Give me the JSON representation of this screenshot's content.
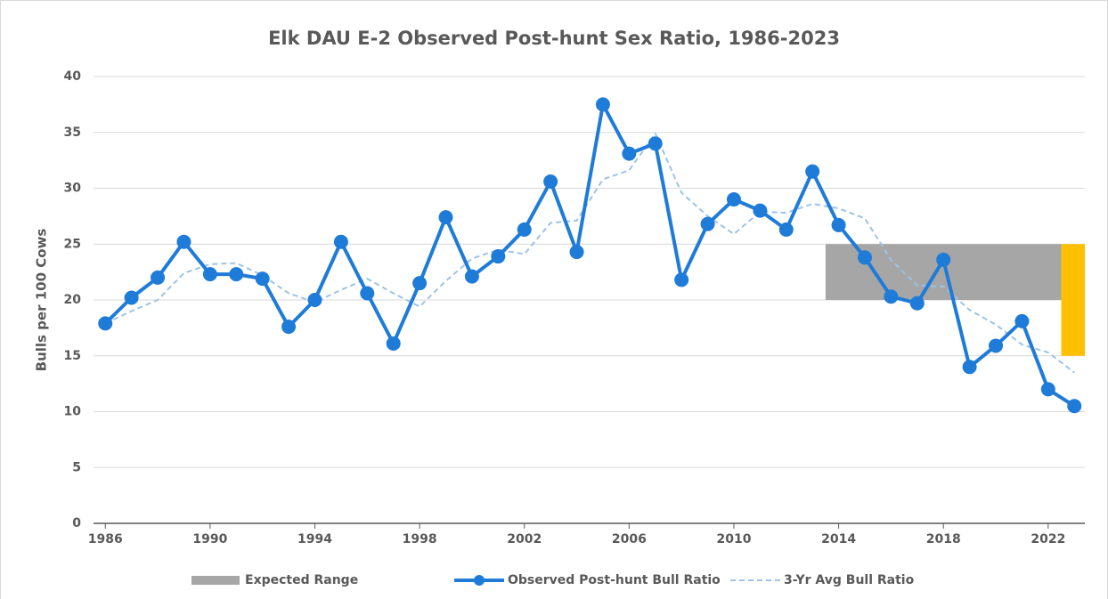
{
  "chart_data": {
    "type": "line",
    "title": "Elk DAU E-2 Observed Post-hunt Sex Ratio, 1986-2023",
    "ylabel": "Bulls per 100 Cows",
    "x": [
      1986,
      1987,
      1988,
      1989,
      1990,
      1991,
      1992,
      1993,
      1994,
      1995,
      1996,
      1997,
      1998,
      1999,
      2000,
      2001,
      2002,
      2003,
      2004,
      2005,
      2006,
      2007,
      2008,
      2009,
      2010,
      2011,
      2012,
      2013,
      2014,
      2015,
      2016,
      2017,
      2018,
      2019,
      2020,
      2021,
      2022,
      2023
    ],
    "series": [
      {
        "name": "Observed Post-hunt Bull Ratio",
        "color": "#1f7bd8",
        "style": "solid-markers",
        "values": [
          17.9,
          20.2,
          22.0,
          25.2,
          22.3,
          22.3,
          21.9,
          17.6,
          20.0,
          25.2,
          20.6,
          16.1,
          21.5,
          27.4,
          22.1,
          23.9,
          26.3,
          30.6,
          24.3,
          37.5,
          33.1,
          34.0,
          21.8,
          26.8,
          29.0,
          28.0,
          26.3,
          31.5,
          26.7,
          23.8,
          20.3,
          19.7,
          23.6,
          14.0,
          15.9,
          18.1,
          12.0,
          10.5
        ]
      },
      {
        "name": "3-Yr Avg Bull Ratio",
        "color": "#9dc3e6",
        "style": "dashed",
        "values": [
          17.9,
          19.0,
          20.0,
          22.4,
          23.2,
          23.3,
          22.2,
          20.6,
          19.8,
          20.9,
          21.9,
          20.6,
          19.4,
          21.7,
          23.7,
          24.5,
          24.1,
          26.9,
          27.1,
          30.8,
          31.6,
          34.9,
          29.6,
          27.5,
          25.9,
          27.9,
          27.8,
          28.6,
          28.2,
          27.3,
          23.6,
          21.3,
          21.2,
          19.1,
          17.8,
          16.0,
          15.3,
          13.5
        ]
      }
    ],
    "bands": [
      {
        "name": "Expected Range",
        "x": [
          2013.5,
          2022.5
        ],
        "y": [
          20,
          25
        ],
        "color": "#a6a6a6"
      },
      {
        "x": [
          2022.5,
          2023.4
        ],
        "y": [
          15,
          25
        ],
        "color": "#ffc000"
      }
    ],
    "xlim": [
      1985.55,
      2023.4
    ],
    "xticks": [
      1986,
      1990,
      1994,
      1998,
      2002,
      2006,
      2010,
      2014,
      2018,
      2022
    ],
    "ylim": [
      0,
      40
    ],
    "yticks": [
      0,
      5,
      10,
      15,
      20,
      25,
      30,
      35,
      40
    ],
    "grid": true,
    "legend": "bottom"
  }
}
